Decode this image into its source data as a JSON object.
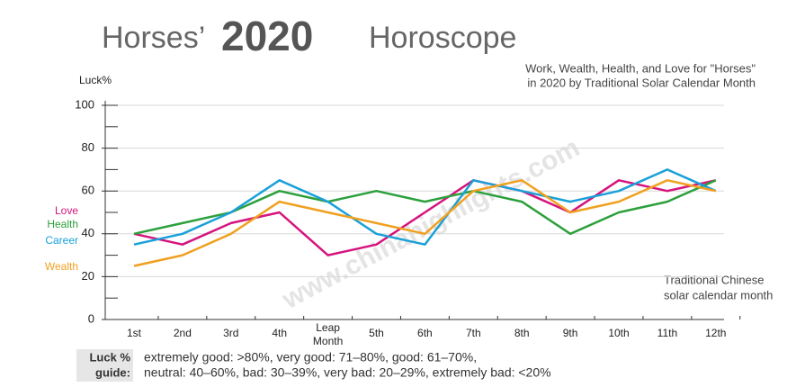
{
  "chart_data": {
    "type": "line",
    "title_left": "Horses’",
    "title_logo": "2020",
    "title_right": "Horoscope",
    "subtitle": [
      "Work, Wealth, Health, and Love for \"Horses\"",
      "in 2020 by Traditional Solar Calendar Month"
    ],
    "y_label": "Luck%",
    "x_label": [
      "Traditional Chinese",
      "solar calendar month"
    ],
    "watermark": "www.chinahighlights.com",
    "categories": [
      "1st",
      "2nd",
      "3rd",
      "4th",
      "Leap Month",
      "5th",
      "6th",
      "7th",
      "8th",
      "9th",
      "10th",
      "11th",
      "12th"
    ],
    "series": [
      {
        "name": "Love",
        "color": "#d6137d",
        "values": [
          40,
          35,
          45,
          50,
          30,
          35,
          50,
          65,
          60,
          50,
          65,
          60,
          65
        ]
      },
      {
        "name": "Health",
        "color": "#2ca03c",
        "values": [
          40,
          45,
          50,
          60,
          55,
          60,
          55,
          60,
          55,
          40,
          50,
          55,
          65
        ]
      },
      {
        "name": "Career",
        "color": "#1aa0d8",
        "values": [
          35,
          40,
          50,
          65,
          55,
          40,
          35,
          65,
          60,
          55,
          60,
          70,
          60
        ]
      },
      {
        "name": "Wealth",
        "color": "#f0a020",
        "values": [
          25,
          30,
          40,
          55,
          50,
          45,
          40,
          60,
          65,
          50,
          55,
          65,
          60
        ]
      }
    ],
    "ylim": [
      0,
      100
    ],
    "yticks": [
      0,
      20,
      40,
      60,
      80,
      100
    ],
    "yminor": [
      10,
      30,
      50,
      70,
      90
    ],
    "grid": true,
    "guide_label": [
      "Luck %",
      "guide:"
    ],
    "guide": [
      "extremely good: >80%, very good: 71–80%, good: 61–70%,",
      "neutral: 40–60%, bad: 30–39%, very bad: 20–29%, extremely bad: <20%"
    ]
  }
}
